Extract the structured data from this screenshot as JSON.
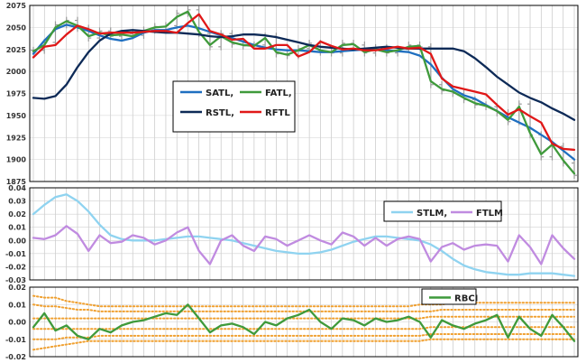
{
  "chart_data": [
    {
      "type": "line",
      "panel": "price",
      "ylim": [
        1875,
        2075
      ],
      "yticks": [
        1875,
        1900,
        1925,
        1950,
        1975,
        2000,
        2025,
        2050,
        2075
      ],
      "x_count": 50,
      "grid": true,
      "legend": {
        "placement": "center-left",
        "entries": [
          {
            "label": "SATL,",
            "color": "#1f6fc0",
            "series": "SATL"
          },
          {
            "label": "FATL,",
            "color": "#3f9a3b",
            "series": "FATL"
          },
          {
            "label": "RSTL,",
            "color": "#0d2a57",
            "series": "RSTL"
          },
          {
            "label": "RFTL",
            "color": "#e01818",
            "series": "RFTL"
          }
        ]
      },
      "series": [
        {
          "name": "SATL",
          "color": "#1f6fc0",
          "values": [
            2020,
            2035,
            2048,
            2053,
            2050,
            2046,
            2041,
            2037,
            2035,
            2038,
            2044,
            2047,
            2047,
            2050,
            2052,
            2049,
            2045,
            2041,
            2038,
            2034,
            2030,
            2027,
            2025,
            2024,
            2024,
            2023,
            2022,
            2022,
            2023,
            2024,
            2025,
            2025,
            2024,
            2023,
            2022,
            2018,
            2008,
            1993,
            1980,
            1973,
            1969,
            1962,
            1955,
            1948,
            1942,
            1936,
            1928,
            1920,
            1910,
            1900
          ]
        },
        {
          "name": "FATL",
          "color": "#3f9a3b",
          "values": [
            2023,
            2030,
            2050,
            2057,
            2052,
            2040,
            2044,
            2041,
            2042,
            2040,
            2046,
            2050,
            2051,
            2062,
            2068,
            2045,
            2030,
            2040,
            2033,
            2030,
            2029,
            2038,
            2022,
            2019,
            2024,
            2030,
            2024,
            2022,
            2030,
            2031,
            2022,
            2025,
            2022,
            2024,
            2028,
            2029,
            1989,
            1980,
            1977,
            1970,
            1964,
            1961,
            1955,
            1945,
            1960,
            1930,
            1906,
            1917,
            1899,
            1884
          ]
        },
        {
          "name": "RSTL",
          "color": "#0d2a57",
          "values": [
            1970,
            1969,
            1972,
            1985,
            2005,
            2022,
            2035,
            2043,
            2046,
            2047,
            2046,
            2045,
            2044,
            2044,
            2043,
            2042,
            2040,
            2039,
            2040,
            2042,
            2042,
            2041,
            2039,
            2036,
            2033,
            2030,
            2028,
            2027,
            2026,
            2025,
            2026,
            2027,
            2028,
            2027,
            2026,
            2026,
            2026,
            2026,
            2026,
            2023,
            2015,
            2005,
            1994,
            1985,
            1976,
            1970,
            1965,
            1958,
            1952,
            1945
          ]
        },
        {
          "name": "RFTL",
          "color": "#e01818",
          "values": [
            2016,
            2028,
            2030,
            2042,
            2052,
            2048,
            2043,
            2044,
            2044,
            2044,
            2045,
            2046,
            2046,
            2044,
            2055,
            2065,
            2046,
            2042,
            2036,
            2037,
            2026,
            2026,
            2030,
            2030,
            2017,
            2022,
            2034,
            2029,
            2025,
            2026,
            2024,
            2024,
            2026,
            2028,
            2026,
            2027,
            2020,
            1992,
            1983,
            1980,
            1977,
            1974,
            1962,
            1951,
            1957,
            1949,
            1942,
            1918,
            1912,
            1911
          ]
        }
      ],
      "bars": {
        "color": "#9a9a9a",
        "close": [
          2024,
          2033,
          2053,
          2058,
          2049,
          2038,
          2046,
          2040,
          2043,
          2041,
          2047,
          2051,
          2052,
          2066,
          2070,
          2043,
          2028,
          2043,
          2031,
          2029,
          2030,
          2040,
          2020,
          2018,
          2026,
          2032,
          2022,
          2021,
          2032,
          2030,
          2021,
          2027,
          2021,
          2025,
          2030,
          2028,
          1985,
          1978,
          1975,
          1968,
          1962,
          1960,
          1953,
          1943,
          1963,
          1928,
          1903,
          1915,
          1896,
          1882
        ]
      }
    },
    {
      "type": "line",
      "panel": "momentum",
      "ylim": [
        -0.03,
        0.04
      ],
      "yticks": [
        -0.03,
        -0.02,
        -0.01,
        0.0,
        0.01,
        0.02,
        0.03,
        0.04
      ],
      "ytick_labels": [
        "-0.03",
        "-0.02",
        "-0.01",
        "0.00",
        "0.01",
        "0.02",
        "0.03",
        "0.04"
      ],
      "x_count": 50,
      "grid": true,
      "legend": {
        "placement": "top-right",
        "entries": [
          {
            "label": "STLM,",
            "color": "#8fd3f0",
            "series": "STLM"
          },
          {
            "label": "FTLM",
            "color": "#c08be0",
            "series": "FTLM"
          }
        ]
      },
      "series": [
        {
          "name": "STLM",
          "color": "#8fd3f0",
          "values": [
            0.02,
            0.027,
            0.033,
            0.035,
            0.03,
            0.022,
            0.012,
            0.004,
            0.001,
            0.0,
            0.0,
            0.0,
            0.001,
            0.002,
            0.003,
            0.003,
            0.002,
            0.001,
            0.0,
            -0.002,
            -0.004,
            -0.006,
            -0.008,
            -0.009,
            -0.01,
            -0.01,
            -0.009,
            -0.007,
            -0.004,
            -0.001,
            0.001,
            0.003,
            0.003,
            0.002,
            0.001,
            0.0,
            -0.003,
            -0.008,
            -0.014,
            -0.019,
            -0.022,
            -0.024,
            -0.025,
            -0.026,
            -0.026,
            -0.025,
            -0.025,
            -0.025,
            -0.026,
            -0.027
          ]
        },
        {
          "name": "FTLM",
          "color": "#c08be0",
          "values": [
            0.002,
            0.001,
            0.004,
            0.011,
            0.005,
            -0.008,
            0.004,
            -0.002,
            -0.001,
            0.004,
            0.002,
            -0.003,
            0.0,
            0.006,
            0.01,
            -0.008,
            -0.018,
            0.0,
            0.004,
            -0.004,
            -0.008,
            0.003,
            0.001,
            -0.004,
            0.0,
            0.004,
            0.0,
            -0.003,
            0.006,
            0.003,
            -0.004,
            0.002,
            -0.004,
            0.001,
            0.003,
            0.001,
            -0.016,
            -0.005,
            -0.002,
            -0.007,
            -0.004,
            -0.003,
            -0.004,
            -0.016,
            0.004,
            -0.005,
            -0.018,
            0.004,
            -0.006,
            -0.014
          ]
        }
      ]
    },
    {
      "type": "line",
      "panel": "rbci",
      "ylim": [
        -0.02,
        0.02
      ],
      "yticks": [
        -0.02,
        -0.01,
        0.0,
        0.01,
        0.02
      ],
      "ytick_labels": [
        "-0.02",
        "-0.01",
        "0.00",
        "0.01",
        "0.02"
      ],
      "x_count": 50,
      "grid": true,
      "legend": {
        "placement": "top-right",
        "entries": [
          {
            "label": "RBCI",
            "color": "#3f9a3b",
            "series": "RBCI"
          }
        ]
      },
      "series": [
        {
          "name": "RBCI",
          "color": "#3f9a3b",
          "values": [
            -0.003,
            0.005,
            -0.005,
            -0.002,
            -0.008,
            -0.01,
            -0.004,
            -0.006,
            -0.002,
            0.0,
            0.001,
            0.003,
            0.005,
            0.004,
            0.01,
            0.002,
            -0.006,
            -0.002,
            -0.001,
            -0.003,
            -0.007,
            0.0,
            -0.002,
            0.002,
            0.004,
            0.007,
            0.0,
            -0.004,
            0.002,
            0.001,
            -0.002,
            0.002,
            0.0,
            0.001,
            0.003,
            0.0,
            -0.009,
            0.001,
            -0.002,
            -0.004,
            -0.001,
            0.001,
            0.004,
            -0.009,
            0.003,
            -0.004,
            -0.008,
            0.004,
            -0.003,
            -0.011
          ]
        }
      ],
      "bands": {
        "color": "#f0a030",
        "lines": [
          [
            0.015,
            0.014,
            0.014,
            0.012,
            0.011,
            0.01,
            0.009,
            0.009,
            0.009,
            0.009,
            0.009,
            0.009,
            0.009,
            0.009,
            0.009,
            0.009,
            0.009,
            0.009,
            0.009,
            0.009,
            0.009,
            0.009,
            0.009,
            0.009,
            0.009,
            0.009,
            0.009,
            0.009,
            0.009,
            0.009,
            0.009,
            0.009,
            0.009,
            0.009,
            0.009,
            0.01,
            0.01,
            0.01,
            0.011,
            0.011,
            0.011,
            0.011,
            0.011,
            0.011,
            0.011,
            0.011,
            0.011,
            0.011,
            0.011,
            0.011
          ],
          [
            0.01,
            0.009,
            0.009,
            0.008,
            0.007,
            0.007,
            0.006,
            0.006,
            0.006,
            0.006,
            0.006,
            0.006,
            0.006,
            0.006,
            0.006,
            0.006,
            0.006,
            0.006,
            0.006,
            0.006,
            0.006,
            0.006,
            0.006,
            0.006,
            0.006,
            0.006,
            0.006,
            0.006,
            0.006,
            0.006,
            0.006,
            0.006,
            0.006,
            0.006,
            0.006,
            0.006,
            0.006,
            0.007,
            0.007,
            0.007,
            0.007,
            0.007,
            0.007,
            0.007,
            0.007,
            0.007,
            0.007,
            0.007,
            0.007,
            0.007
          ],
          [
            0.002,
            0.002,
            0.002,
            0.002,
            0.002,
            0.002,
            0.002,
            0.002,
            0.002,
            0.002,
            0.002,
            0.002,
            0.002,
            0.002,
            0.002,
            0.002,
            0.002,
            0.002,
            0.002,
            0.002,
            0.002,
            0.002,
            0.002,
            0.002,
            0.002,
            0.002,
            0.002,
            0.002,
            0.002,
            0.002,
            0.002,
            0.002,
            0.002,
            0.002,
            0.002,
            0.002,
            0.003,
            0.003,
            0.003,
            0.003,
            0.003,
            0.003,
            0.003,
            0.003,
            0.003,
            0.003,
            0.003,
            0.003,
            0.003,
            0.003
          ],
          [
            -0.004,
            -0.004,
            -0.004,
            -0.004,
            -0.004,
            -0.004,
            -0.004,
            -0.004,
            -0.004,
            -0.004,
            -0.004,
            -0.004,
            -0.004,
            -0.004,
            -0.004,
            -0.004,
            -0.004,
            -0.004,
            -0.004,
            -0.004,
            -0.004,
            -0.004,
            -0.004,
            -0.004,
            -0.004,
            -0.004,
            -0.004,
            -0.004,
            -0.004,
            -0.004,
            -0.004,
            -0.004,
            -0.004,
            -0.004,
            -0.004,
            -0.004,
            -0.003,
            -0.003,
            -0.003,
            -0.003,
            -0.003,
            -0.003,
            -0.003,
            -0.003,
            -0.003,
            -0.003,
            -0.003,
            -0.003,
            -0.003,
            -0.003
          ],
          [
            -0.01,
            -0.01,
            -0.01,
            -0.009,
            -0.009,
            -0.009,
            -0.008,
            -0.008,
            -0.008,
            -0.008,
            -0.008,
            -0.008,
            -0.008,
            -0.008,
            -0.008,
            -0.008,
            -0.008,
            -0.008,
            -0.008,
            -0.008,
            -0.008,
            -0.008,
            -0.008,
            -0.008,
            -0.008,
            -0.008,
            -0.008,
            -0.008,
            -0.008,
            -0.008,
            -0.008,
            -0.008,
            -0.008,
            -0.008,
            -0.008,
            -0.008,
            -0.007,
            -0.007,
            -0.007,
            -0.007,
            -0.007,
            -0.007,
            -0.007,
            -0.007,
            -0.007,
            -0.007,
            -0.007,
            -0.007,
            -0.007,
            -0.007
          ],
          [
            -0.016,
            -0.015,
            -0.014,
            -0.013,
            -0.012,
            -0.011,
            -0.011,
            -0.011,
            -0.011,
            -0.011,
            -0.011,
            -0.011,
            -0.011,
            -0.011,
            -0.011,
            -0.011,
            -0.011,
            -0.011,
            -0.011,
            -0.011,
            -0.011,
            -0.011,
            -0.011,
            -0.011,
            -0.011,
            -0.011,
            -0.011,
            -0.011,
            -0.011,
            -0.011,
            -0.011,
            -0.011,
            -0.011,
            -0.011,
            -0.011,
            -0.011,
            -0.01,
            -0.01,
            -0.01,
            -0.01,
            -0.01,
            -0.01,
            -0.01,
            -0.01,
            -0.01,
            -0.01,
            -0.01,
            -0.01,
            -0.01,
            -0.01
          ]
        ]
      }
    }
  ]
}
